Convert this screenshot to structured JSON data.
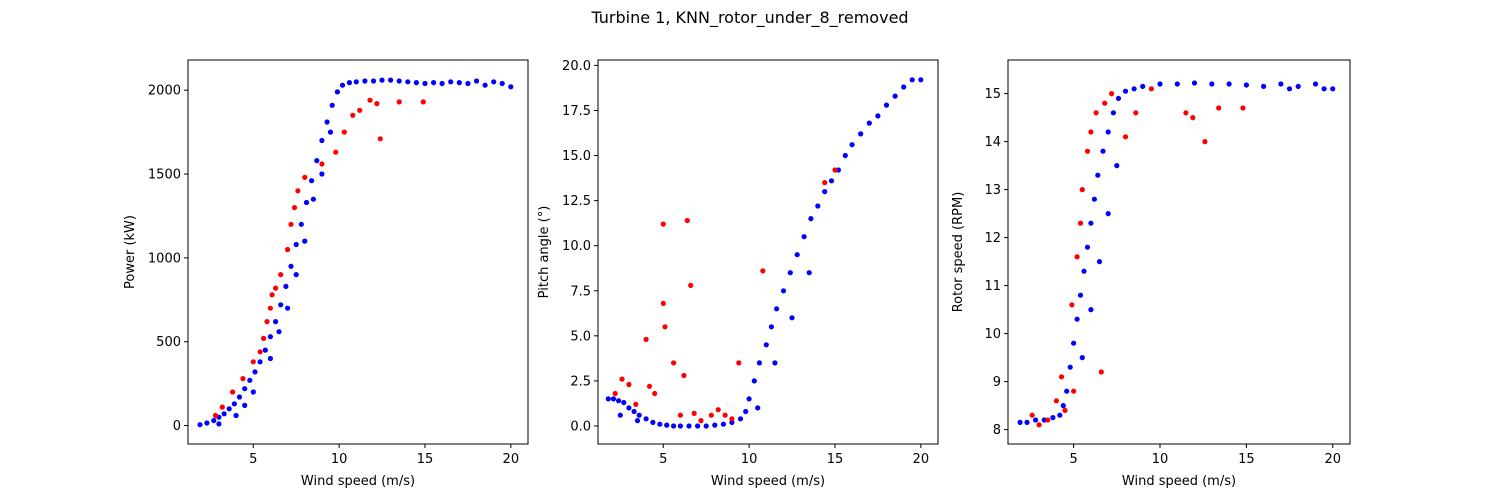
{
  "figure": {
    "suptitle": "Turbine 1, KNN_rotor_under_8_removed",
    "colors": {
      "normal": "#0000ff",
      "flagged": "#ff0000"
    }
  },
  "chart_data": [
    {
      "type": "scatter",
      "xlabel": "Wind speed (m/s)",
      "ylabel": "Power (kW)",
      "xlim": [
        1.2,
        21.0
      ],
      "ylim": [
        -110,
        2180
      ],
      "xticks": [
        5,
        10,
        15,
        20
      ],
      "yticks": [
        0,
        500,
        1000,
        1500,
        2000
      ],
      "series": [
        {
          "color": "#0000ff",
          "points": [
            [
              1.9,
              5
            ],
            [
              2.3,
              15
            ],
            [
              2.7,
              30
            ],
            [
              3.0,
              50
            ],
            [
              3.3,
              70
            ],
            [
              3.6,
              100
            ],
            [
              3.9,
              130
            ],
            [
              4.2,
              170
            ],
            [
              4.5,
              220
            ],
            [
              4.8,
              270
            ],
            [
              5.1,
              320
            ],
            [
              5.4,
              380
            ],
            [
              5.7,
              450
            ],
            [
              6.0,
              530
            ],
            [
              6.3,
              620
            ],
            [
              6.6,
              720
            ],
            [
              6.9,
              830
            ],
            [
              7.2,
              950
            ],
            [
              7.5,
              1080
            ],
            [
              7.8,
              1200
            ],
            [
              8.1,
              1330
            ],
            [
              8.4,
              1460
            ],
            [
              8.7,
              1580
            ],
            [
              9.0,
              1700
            ],
            [
              9.3,
              1810
            ],
            [
              9.6,
              1910
            ],
            [
              9.9,
              1990
            ],
            [
              10.2,
              2030
            ],
            [
              10.6,
              2045
            ],
            [
              11.0,
              2050
            ],
            [
              11.5,
              2055
            ],
            [
              12.0,
              2055
            ],
            [
              12.5,
              2060
            ],
            [
              13.0,
              2060
            ],
            [
              13.5,
              2055
            ],
            [
              14.0,
              2050
            ],
            [
              14.5,
              2045
            ],
            [
              15.0,
              2040
            ],
            [
              15.5,
              2045
            ],
            [
              16.0,
              2040
            ],
            [
              16.5,
              2050
            ],
            [
              17.0,
              2045
            ],
            [
              17.5,
              2040
            ],
            [
              18.0,
              2055
            ],
            [
              18.5,
              2030
            ],
            [
              19.0,
              2050
            ],
            [
              19.5,
              2040
            ],
            [
              20.0,
              2020
            ],
            [
              4.0,
              60
            ],
            [
              5.0,
              200
            ],
            [
              6.0,
              400
            ],
            [
              7.0,
              700
            ],
            [
              8.0,
              1100
            ],
            [
              9.0,
              1500
            ],
            [
              3.0,
              10
            ],
            [
              4.5,
              120
            ],
            [
              6.5,
              560
            ],
            [
              7.5,
              900
            ],
            [
              8.5,
              1350
            ],
            [
              9.5,
              1750
            ]
          ]
        },
        {
          "color": "#ff0000",
          "points": [
            [
              2.8,
              60
            ],
            [
              3.2,
              110
            ],
            [
              3.8,
              200
            ],
            [
              4.4,
              280
            ],
            [
              5.0,
              380
            ],
            [
              5.4,
              440
            ],
            [
              5.6,
              520
            ],
            [
              5.8,
              620
            ],
            [
              6.0,
              700
            ],
            [
              6.1,
              780
            ],
            [
              6.3,
              820
            ],
            [
              6.6,
              900
            ],
            [
              7.0,
              1050
            ],
            [
              7.2,
              1200
            ],
            [
              7.4,
              1300
            ],
            [
              7.6,
              1400
            ],
            [
              8.0,
              1480
            ],
            [
              9.0,
              1560
            ],
            [
              9.8,
              1630
            ],
            [
              10.3,
              1750
            ],
            [
              10.8,
              1850
            ],
            [
              11.2,
              1880
            ],
            [
              11.8,
              1940
            ],
            [
              12.2,
              1920
            ],
            [
              12.4,
              1710
            ],
            [
              13.5,
              1930
            ],
            [
              14.9,
              1930
            ]
          ]
        }
      ]
    },
    {
      "type": "scatter",
      "xlabel": "Wind speed (m/s)",
      "ylabel": "Pitch angle (°)",
      "xlim": [
        1.2,
        21.0
      ],
      "ylim": [
        -1.0,
        20.3
      ],
      "xticks": [
        5,
        10,
        15,
        20
      ],
      "yticks": [
        0.0,
        2.5,
        5.0,
        7.5,
        10.0,
        12.5,
        15.0,
        17.5,
        20.0
      ],
      "series": [
        {
          "color": "#0000ff",
          "points": [
            [
              1.8,
              1.5
            ],
            [
              2.1,
              1.5
            ],
            [
              2.4,
              1.4
            ],
            [
              2.7,
              1.3
            ],
            [
              3.0,
              1.0
            ],
            [
              3.3,
              0.8
            ],
            [
              3.6,
              0.6
            ],
            [
              4.0,
              0.4
            ],
            [
              4.4,
              0.2
            ],
            [
              4.8,
              0.1
            ],
            [
              5.2,
              0.05
            ],
            [
              5.6,
              0.0
            ],
            [
              6.0,
              0.0
            ],
            [
              6.5,
              0.0
            ],
            [
              7.0,
              0.0
            ],
            [
              7.5,
              0.0
            ],
            [
              8.0,
              0.05
            ],
            [
              8.5,
              0.1
            ],
            [
              9.0,
              0.2
            ],
            [
              9.5,
              0.4
            ],
            [
              9.8,
              0.8
            ],
            [
              10.0,
              1.5
            ],
            [
              10.3,
              2.5
            ],
            [
              10.6,
              3.5
            ],
            [
              11.0,
              4.5
            ],
            [
              11.3,
              5.5
            ],
            [
              11.6,
              6.5
            ],
            [
              12.0,
              7.5
            ],
            [
              12.4,
              8.5
            ],
            [
              12.8,
              9.5
            ],
            [
              13.2,
              10.5
            ],
            [
              13.6,
              11.5
            ],
            [
              14.0,
              12.2
            ],
            [
              14.4,
              13.0
            ],
            [
              14.8,
              13.6
            ],
            [
              15.2,
              14.2
            ],
            [
              15.6,
              15.0
            ],
            [
              16.0,
              15.6
            ],
            [
              16.5,
              16.2
            ],
            [
              17.0,
              16.8
            ],
            [
              17.5,
              17.2
            ],
            [
              18.0,
              17.8
            ],
            [
              18.5,
              18.3
            ],
            [
              19.0,
              18.8
            ],
            [
              19.5,
              19.2
            ],
            [
              20.0,
              19.2
            ],
            [
              2.5,
              0.6
            ],
            [
              3.5,
              0.3
            ],
            [
              10.5,
              1.0
            ],
            [
              11.5,
              3.5
            ],
            [
              12.5,
              6.0
            ],
            [
              13.5,
              8.5
            ]
          ]
        },
        {
          "color": "#ff0000",
          "points": [
            [
              2.2,
              1.8
            ],
            [
              2.6,
              2.6
            ],
            [
              3.0,
              2.3
            ],
            [
              3.4,
              1.2
            ],
            [
              4.0,
              4.8
            ],
            [
              4.2,
              2.2
            ],
            [
              4.5,
              1.8
            ],
            [
              5.0,
              6.8
            ],
            [
              5.0,
              11.2
            ],
            [
              5.1,
              5.5
            ],
            [
              5.6,
              3.5
            ],
            [
              6.0,
              0.6
            ],
            [
              6.2,
              2.8
            ],
            [
              6.4,
              11.4
            ],
            [
              6.6,
              7.8
            ],
            [
              6.8,
              0.7
            ],
            [
              7.2,
              0.3
            ],
            [
              7.8,
              0.6
            ],
            [
              8.2,
              0.9
            ],
            [
              8.6,
              0.6
            ],
            [
              9.0,
              0.4
            ],
            [
              9.4,
              3.5
            ],
            [
              10.8,
              8.6
            ],
            [
              14.4,
              13.5
            ],
            [
              15.0,
              14.2
            ]
          ]
        }
      ]
    },
    {
      "type": "scatter",
      "xlabel": "Wind speed (m/s)",
      "ylabel": "Rotor speed (RPM)",
      "xlim": [
        1.2,
        21.0
      ],
      "ylim": [
        7.7,
        15.7
      ],
      "xticks": [
        5,
        10,
        15,
        20
      ],
      "yticks": [
        8,
        9,
        10,
        11,
        12,
        13,
        14,
        15
      ],
      "series": [
        {
          "color": "#0000ff",
          "points": [
            [
              1.9,
              8.15
            ],
            [
              2.3,
              8.15
            ],
            [
              2.8,
              8.2
            ],
            [
              3.3,
              8.2
            ],
            [
              3.8,
              8.25
            ],
            [
              4.2,
              8.3
            ],
            [
              4.6,
              8.8
            ],
            [
              4.8,
              9.3
            ],
            [
              5.0,
              9.8
            ],
            [
              5.2,
              10.3
            ],
            [
              5.4,
              10.8
            ],
            [
              5.6,
              11.3
            ],
            [
              5.8,
              11.8
            ],
            [
              6.0,
              12.3
            ],
            [
              6.2,
              12.8
            ],
            [
              6.4,
              13.3
            ],
            [
              6.7,
              13.8
            ],
            [
              7.0,
              14.2
            ],
            [
              7.3,
              14.6
            ],
            [
              7.6,
              14.9
            ],
            [
              8.0,
              15.05
            ],
            [
              8.5,
              15.1
            ],
            [
              9.0,
              15.15
            ],
            [
              10.0,
              15.2
            ],
            [
              11.0,
              15.2
            ],
            [
              12.0,
              15.22
            ],
            [
              13.0,
              15.2
            ],
            [
              14.0,
              15.2
            ],
            [
              15.0,
              15.18
            ],
            [
              16.0,
              15.15
            ],
            [
              17.0,
              15.2
            ],
            [
              17.5,
              15.1
            ],
            [
              18.0,
              15.15
            ],
            [
              19.0,
              15.2
            ],
            [
              19.5,
              15.1
            ],
            [
              20.0,
              15.1
            ],
            [
              4.4,
              8.5
            ],
            [
              5.5,
              9.5
            ],
            [
              6.0,
              10.5
            ],
            [
              6.5,
              11.5
            ],
            [
              7.0,
              12.5
            ],
            [
              7.5,
              13.5
            ]
          ]
        },
        {
          "color": "#ff0000",
          "points": [
            [
              2.6,
              8.3
            ],
            [
              3.0,
              8.1
            ],
            [
              3.5,
              8.2
            ],
            [
              4.0,
              8.6
            ],
            [
              4.3,
              9.1
            ],
            [
              4.5,
              8.4
            ],
            [
              4.9,
              10.6
            ],
            [
              5.0,
              8.8
            ],
            [
              5.2,
              11.6
            ],
            [
              5.4,
              12.3
            ],
            [
              5.5,
              13.0
            ],
            [
              5.8,
              13.8
            ],
            [
              6.0,
              14.2
            ],
            [
              6.3,
              14.6
            ],
            [
              6.6,
              9.2
            ],
            [
              6.8,
              14.8
            ],
            [
              7.2,
              15.0
            ],
            [
              8.0,
              14.1
            ],
            [
              8.6,
              14.6
            ],
            [
              9.5,
              15.1
            ],
            [
              11.5,
              14.6
            ],
            [
              11.9,
              14.5
            ],
            [
              12.6,
              14.0
            ],
            [
              13.4,
              14.7
            ],
            [
              14.8,
              14.7
            ]
          ]
        }
      ]
    }
  ]
}
